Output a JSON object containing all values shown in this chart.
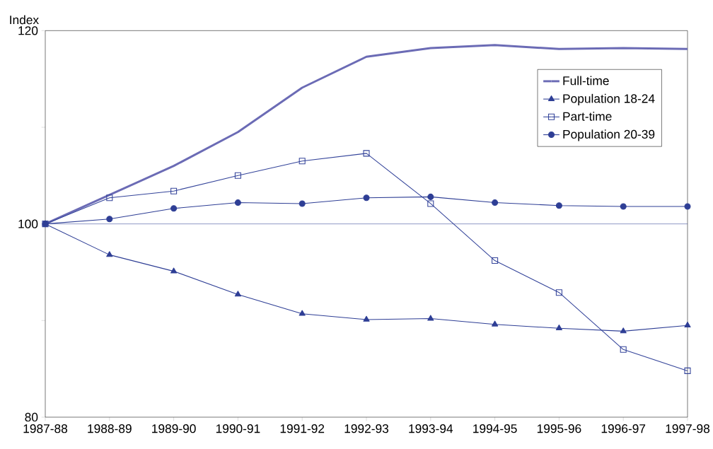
{
  "chart_data": {
    "type": "line",
    "ylabel": "Index",
    "categories": [
      "1987-88",
      "1988-89",
      "1989-90",
      "1990-91",
      "1991-92",
      "1992-93",
      "1993-94",
      "1994-95",
      "1995-96",
      "1996-97",
      "1997-98"
    ],
    "series": [
      {
        "name": "Full-time",
        "color": "#6b6bb5",
        "marker": "none",
        "values": [
          100,
          103.0,
          106.0,
          109.5,
          114.1,
          117.3,
          118.2,
          118.5,
          118.1,
          118.2,
          118.1
        ]
      },
      {
        "name": "Population 18-24",
        "color": "#2e3e95",
        "marker": "triangle",
        "values": [
          100,
          96.8,
          95.1,
          92.7,
          90.7,
          90.1,
          90.2,
          89.6,
          89.2,
          88.9,
          89.5
        ]
      },
      {
        "name": "Part-time",
        "color": "#34449a",
        "marker": "square",
        "values": [
          100,
          102.7,
          103.4,
          105.0,
          106.5,
          107.3,
          102.1,
          96.2,
          92.9,
          87.0,
          84.8
        ]
      },
      {
        "name": "Population 20-39",
        "color": "#2e3e95",
        "marker": "circle",
        "values": [
          100,
          100.5,
          101.6,
          102.2,
          102.1,
          102.7,
          102.8,
          102.2,
          101.9,
          101.8,
          101.8
        ]
      }
    ],
    "ylim": [
      80,
      120
    ],
    "yticks": [
      80,
      {
        "value": 90,
        "label": null
      },
      100,
      {
        "value": 110,
        "label": null
      },
      120
    ],
    "ref_lines": [
      {
        "axis": "y",
        "value": 100,
        "color": "#2e3e95"
      }
    ],
    "grid": false,
    "legend": "top right",
    "line_style": "solid"
  }
}
